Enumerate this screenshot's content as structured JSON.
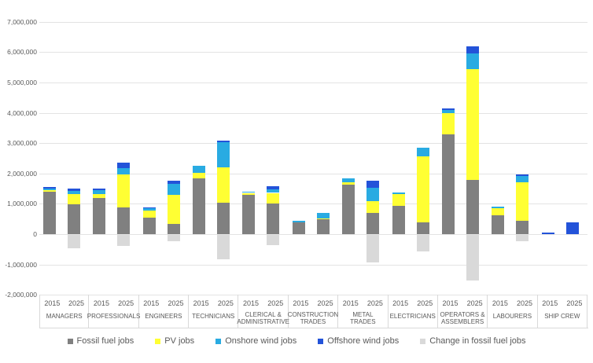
{
  "legend": {
    "items": [
      {
        "key": "fossil",
        "label": "Fossil fuel jobs",
        "color": "#808080"
      },
      {
        "key": "pv",
        "label": "PV jobs",
        "color": "#FFFF33"
      },
      {
        "key": "onshore",
        "label": "Onshore wind jobs",
        "color": "#29ABE2"
      },
      {
        "key": "offshore",
        "label": "Offshore wind jobs",
        "color": "#2353D9"
      },
      {
        "key": "change",
        "label": "Change in fossil fuel jobs",
        "color": "#D9D9D9"
      }
    ]
  },
  "chart_data": {
    "type": "bar",
    "stacked": true,
    "grid": true,
    "legend_position": "bottom",
    "title": "",
    "xlabel": "",
    "ylabel": "",
    "ylim": [
      -2000000,
      7000000
    ],
    "y_ticks": [
      "7,000,000",
      "6,000,000",
      "5,000,000",
      "4,000,000",
      "3,000,000",
      "2,000,000",
      "1,000,000",
      "0",
      "-1,000,000",
      "-2,000,000"
    ],
    "categories": [
      "MANAGERS",
      "PROFESSIONALS",
      "ENGINEERS",
      "TECHNICIANS",
      "CLERICAL & ADMINISTRATIVE",
      "CONSTRUCTION TRADES",
      "METAL TRADES",
      "ELECTRICIANS",
      "OPERATORS & ASSEMBLERS",
      "LABOURERS",
      "SHIP CREW"
    ],
    "years": [
      "2015",
      "2025"
    ],
    "series": [
      {
        "name": "Fossil fuel jobs",
        "key": "fossil",
        "color": "#808080",
        "values": [
          1400000,
          980000,
          1200000,
          870000,
          550000,
          340000,
          1830000,
          1040000,
          1290000,
          1000000,
          380000,
          480000,
          1620000,
          700000,
          930000,
          400000,
          3280000,
          1800000,
          610000,
          430000,
          0,
          0
        ]
      },
      {
        "name": "PV jobs",
        "key": "pv",
        "color": "#FFFF33",
        "values": [
          50000,
          330000,
          120000,
          1110000,
          230000,
          950000,
          200000,
          1170000,
          70000,
          360000,
          0,
          50000,
          80000,
          400000,
          390000,
          2160000,
          700000,
          3650000,
          240000,
          1270000,
          0,
          0
        ]
      },
      {
        "name": "Onshore wind jobs",
        "key": "onshore",
        "color": "#29ABE2",
        "values": [
          60000,
          110000,
          140000,
          200000,
          70000,
          360000,
          220000,
          810000,
          40000,
          120000,
          60000,
          170000,
          150000,
          430000,
          60000,
          300000,
          120000,
          510000,
          60000,
          220000,
          0,
          0
        ]
      },
      {
        "name": "Offshore wind jobs",
        "key": "offshore",
        "color": "#2353D9",
        "values": [
          40000,
          90000,
          40000,
          170000,
          30000,
          110000,
          0,
          50000,
          0,
          100000,
          0,
          0,
          0,
          230000,
          0,
          0,
          50000,
          230000,
          0,
          60000,
          50000,
          400000
        ]
      },
      {
        "name": "Change in fossil fuel jobs",
        "key": "change",
        "color": "#D9D9D9",
        "values": [
          0,
          -450000,
          0,
          -350000,
          0,
          -200000,
          0,
          -800000,
          0,
          -330000,
          0,
          0,
          0,
          -900000,
          0,
          -550000,
          0,
          -1500000,
          0,
          -200000,
          0,
          0
        ]
      }
    ]
  }
}
